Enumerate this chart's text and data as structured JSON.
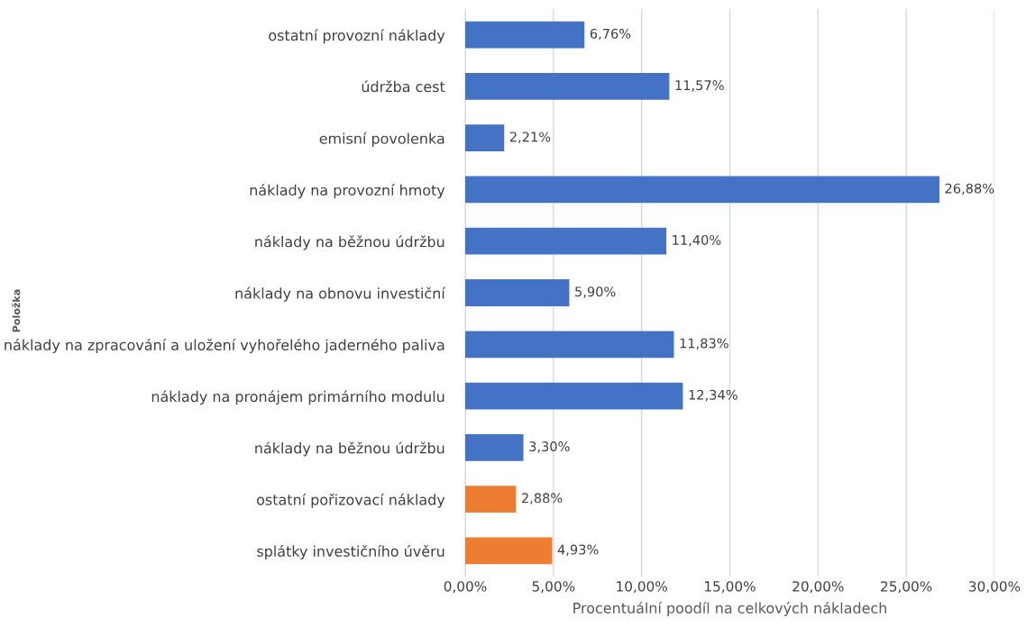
{
  "chart_data": {
    "type": "bar",
    "orientation": "horizontal",
    "xlabel": "Procentuální poodíl na celkových nákladech",
    "ylabel": "Položka",
    "categories": [
      "ostatní provozní náklady",
      "údržba cest",
      "emisní povolenka",
      "náklady na provozní hmoty",
      "náklady na běžnou údržbu",
      "náklady na obnovu investiční",
      "náklady na zpracování a uložení vyhořelého jaderného paliva",
      "náklady na pronájem primárního modulu",
      "náklady na běžnou údržbu",
      "ostatní pořizovací náklady",
      "splátky investičního úvěru"
    ],
    "values": [
      6.76,
      11.57,
      2.21,
      26.88,
      11.4,
      5.9,
      11.83,
      12.34,
      3.3,
      2.88,
      4.93
    ],
    "colors": [
      "#4472c4",
      "#4472c4",
      "#4472c4",
      "#4472c4",
      "#4472c4",
      "#4472c4",
      "#4472c4",
      "#4472c4",
      "#4472c4",
      "#ed7d31",
      "#ed7d31"
    ],
    "value_labels": [
      "6,76%",
      "11,57%",
      "2,21%",
      "26,88%",
      "11,40%",
      "5,90%",
      "11,83%",
      "12,34%",
      "3,30%",
      "2,88%",
      "4,93%"
    ],
    "xlim": [
      0,
      30
    ],
    "xticks": [
      {
        "value": 0,
        "label": "0,00%"
      },
      {
        "value": 5,
        "label": "5,00%"
      },
      {
        "value": 10,
        "label": "10,00%"
      },
      {
        "value": 15,
        "label": "15,00%"
      },
      {
        "value": 20,
        "label": "20,00%"
      },
      {
        "value": 25,
        "label": "25,00%"
      },
      {
        "value": 30,
        "label": "30,00%"
      }
    ],
    "grid": "x",
    "legend": false
  }
}
